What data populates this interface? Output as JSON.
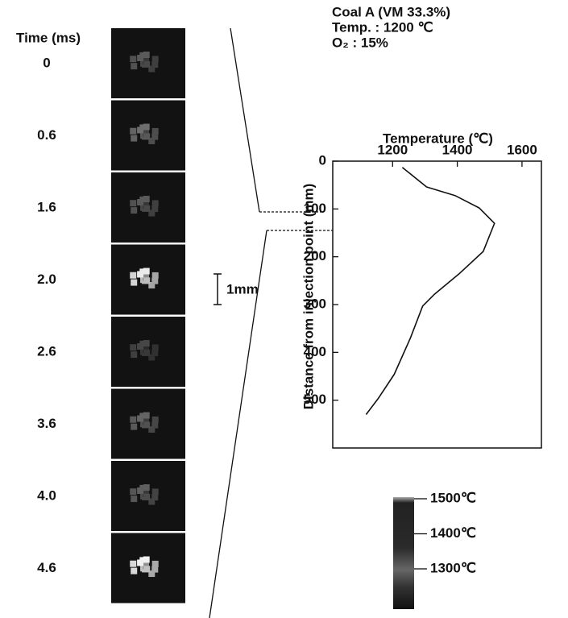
{
  "chart_data": {
    "type": "line",
    "header": [
      "Coal A (VM 33.3%)",
      "Temp. : 1200 ℃",
      "O₂ : 15%"
    ],
    "time_label": "Time (ms)",
    "times": [
      "0",
      "0.6",
      "1.6",
      "2.0",
      "2.6",
      "3.6",
      "4.0",
      "4.6"
    ],
    "scale_bar": "1mm",
    "xlabel": "Temperature (℃)",
    "ylabel": "Distance from injection point (mm)",
    "x": [
      1230,
      1305,
      1393,
      1468,
      1515,
      1480,
      1405,
      1330,
      1293,
      1255,
      1205,
      1155,
      1118
    ],
    "values": [
      13,
      54,
      72,
      98,
      130,
      189,
      236,
      278,
      303,
      370,
      446,
      497,
      530
    ],
    "color": "#111111",
    "xlim": [
      1015,
      1660
    ],
    "xticks": [
      1200,
      1400,
      1600
    ],
    "ylim": [
      0,
      600
    ],
    "yticks": [
      0,
      100,
      200,
      300,
      400,
      500
    ],
    "y_inverted": true,
    "colorbar": [
      {
        "value": 1500,
        "label": "1500℃"
      },
      {
        "value": 1400,
        "label": "1400℃"
      },
      {
        "value": 1300,
        "label": "1300℃"
      }
    ]
  }
}
